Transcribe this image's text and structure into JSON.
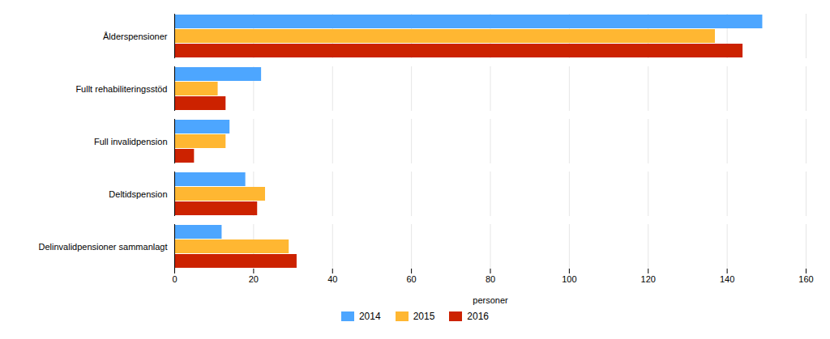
{
  "chart_data": {
    "type": "bar",
    "orientation": "horizontal",
    "categories": [
      "Ålderspensioner",
      "Fullt rehabiliteringsstöd",
      "Full invalidpension",
      "Deltidspension",
      "Delinvalidpensioner sammanlagt"
    ],
    "series": [
      {
        "name": "2014",
        "color": "#4da6ff",
        "values": [
          149,
          22,
          14,
          18,
          12
        ]
      },
      {
        "name": "2015",
        "color": "#ffb732",
        "values": [
          137,
          11,
          13,
          23,
          29
        ]
      },
      {
        "name": "2016",
        "color": "#cc2200",
        "values": [
          144,
          13,
          5,
          21,
          31
        ]
      }
    ],
    "xlabel": "personer",
    "xlim": [
      0,
      160
    ],
    "xticks": [
      0,
      20,
      40,
      60,
      80,
      100,
      120,
      140,
      160
    ],
    "grid": true,
    "legend": "bottom"
  }
}
